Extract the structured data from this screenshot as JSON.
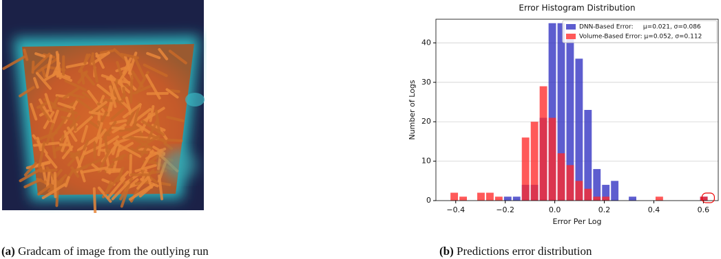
{
  "captions": [
    {
      "label": "(a)",
      "text": "Gradcam of image from the outlying run"
    },
    {
      "label": "(b)",
      "text": "Predictions error distribution"
    }
  ],
  "chart_data": {
    "type": "histogram",
    "title": "Error Histogram Distribution",
    "x_label": "Error Per Log",
    "y_label": "Number of Logs",
    "bins": [
      -0.46,
      -0.424,
      -0.388,
      -0.352,
      -0.316,
      -0.28,
      -0.244,
      -0.208,
      -0.172,
      -0.136,
      -0.1,
      -0.064,
      -0.028,
      0.008,
      0.044,
      0.08,
      0.116,
      0.152,
      0.188,
      0.224,
      0.26,
      0.296,
      0.332,
      0.368,
      0.404,
      0.44,
      0.476,
      0.512,
      0.548,
      0.584,
      0.62,
      0.656
    ],
    "series": [
      {
        "name": "DNN-Based Error:     μ=0.021, σ=0.086",
        "color": "#2f2fc2",
        "values": [
          0,
          0,
          0,
          0,
          0,
          0,
          0,
          1,
          1,
          4,
          4,
          21,
          45,
          45,
          41,
          36,
          23,
          8,
          4,
          5,
          0,
          1,
          0,
          0,
          0,
          0,
          0,
          0,
          0,
          1,
          0
        ]
      },
      {
        "name": "Volume-Based Error: μ=0.052, σ=0.112",
        "color": "#ff2a2a",
        "values": [
          0,
          2,
          1,
          0,
          2,
          2,
          1,
          0,
          0,
          16,
          20,
          29,
          21,
          12,
          9,
          5,
          3,
          1,
          1,
          0,
          0,
          0,
          0,
          0,
          1,
          0,
          0,
          0,
          0,
          1,
          0
        ]
      }
    ],
    "xlim": [
      -0.48,
      0.66
    ],
    "xticks": [
      {
        "value": -0.4,
        "label": "−0.4"
      },
      {
        "value": -0.2,
        "label": "−0.2"
      },
      {
        "value": 0,
        "label": "0.0"
      },
      0.2,
      0.4,
      0.6
    ],
    "ylim": [
      0,
      46
    ],
    "yticks": [
      0,
      10,
      20,
      30,
      40
    ],
    "grid": "y",
    "legend": "upper right"
  }
}
